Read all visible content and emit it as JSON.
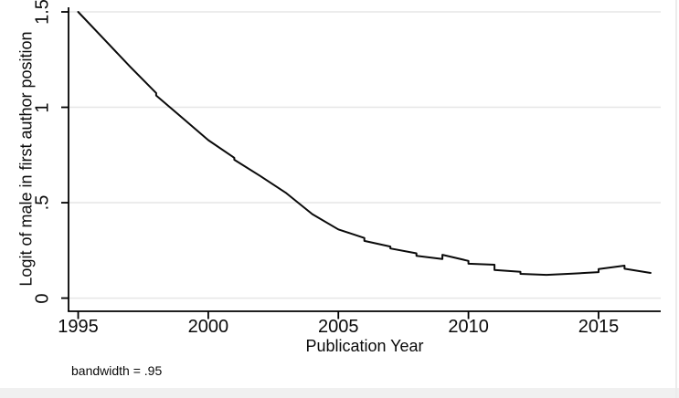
{
  "window": {
    "background_color": "#ffffff",
    "bottom_strip_color": "#f0f0f0",
    "edge_line_color": "#ececec"
  },
  "chart_data": {
    "type": "line",
    "title": "",
    "xlabel": "Publication Year",
    "ylabel": "Logit of male in first author position",
    "note": "bandwidth = .95",
    "legend": "none",
    "grid": "horizontal gridlines at each y tick",
    "x_ticks": [
      {
        "value": 1995,
        "label": "1995"
      },
      {
        "value": 2000,
        "label": "2000"
      },
      {
        "value": 2005,
        "label": "2005"
      },
      {
        "value": 2010,
        "label": "2010"
      },
      {
        "value": 2015,
        "label": "2015"
      }
    ],
    "y_ticks": [
      {
        "value": 0,
        "label": "0"
      },
      {
        "value": 0.5,
        "label": ".5"
      },
      {
        "value": 1,
        "label": "1"
      },
      {
        "value": 1.5,
        "label": "1.5"
      }
    ],
    "xlim": [
      1994.63,
      2017.39
    ],
    "ylim": [
      -0.069,
      1.524
    ],
    "colors": {
      "line": "#0a0a0a",
      "axis": "#000000",
      "grid": "#e6e6e6",
      "text": "#0a0a0a"
    },
    "series": [
      {
        "name": "smoothed-line",
        "style": "solid",
        "color": "#0a0a0a",
        "points": [
          [
            1995,
            1.5
          ],
          [
            1996,
            1.356
          ],
          [
            1997,
            1.212
          ],
          [
            1998,
            1.075
          ],
          [
            1998,
            1.062
          ],
          [
            1999,
            0.945
          ],
          [
            2000,
            0.828
          ],
          [
            2001,
            0.735
          ],
          [
            2001,
            0.725
          ],
          [
            2002,
            0.64
          ],
          [
            2003,
            0.55
          ],
          [
            2004,
            0.44
          ],
          [
            2005,
            0.36
          ],
          [
            2006,
            0.315
          ],
          [
            2006,
            0.3
          ],
          [
            2007,
            0.27
          ],
          [
            2007,
            0.26
          ],
          [
            2008,
            0.235
          ],
          [
            2008,
            0.222
          ],
          [
            2009,
            0.205
          ],
          [
            2009,
            0.227
          ],
          [
            2010,
            0.195
          ],
          [
            2010,
            0.18
          ],
          [
            2011,
            0.175
          ],
          [
            2011,
            0.147
          ],
          [
            2012,
            0.138
          ],
          [
            2012,
            0.127
          ],
          [
            2013,
            0.122
          ],
          [
            2014,
            0.128
          ],
          [
            2015,
            0.136
          ],
          [
            2015,
            0.152
          ],
          [
            2016,
            0.17
          ],
          [
            2016,
            0.154
          ],
          [
            2017,
            0.132
          ]
        ]
      }
    ]
  }
}
